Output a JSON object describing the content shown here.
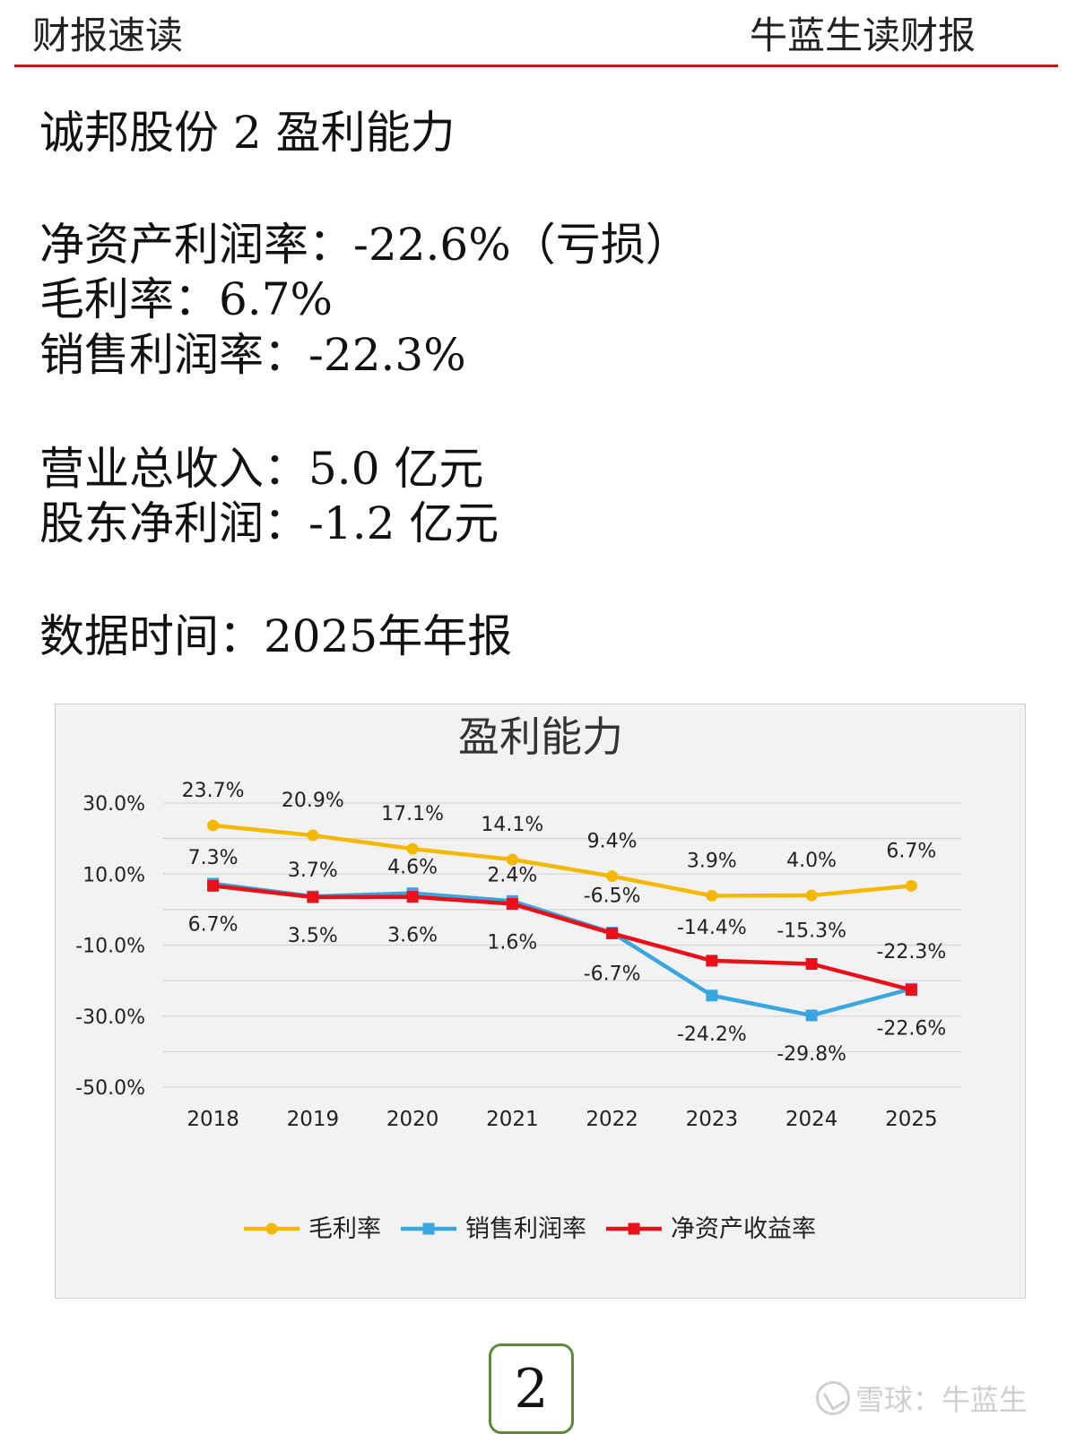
{
  "header": {
    "left": "财报速读",
    "right": "牛蓝生读财报"
  },
  "title_line": "诚邦股份 2 盈利能力",
  "metrics": [
    "净资产利润率：-22.6%（亏损）",
    "毛利率：6.7%",
    "销售利润率：-22.3%"
  ],
  "totals": [
    "营业总收入：5.0 亿元",
    "股东净利润：-1.2 亿元"
  ],
  "data_time": "数据时间：2025年年报",
  "page_number": "2",
  "watermark": "雪球：牛蓝生",
  "colors": {
    "accent_rule": "#c9151e",
    "gross": "#f5b800",
    "sales": "#3aa6e0",
    "roe": "#e8111a"
  },
  "chart_data": {
    "type": "line",
    "title": "盈利能力",
    "categories": [
      "2018",
      "2019",
      "2020",
      "2021",
      "2022",
      "2023",
      "2024",
      "2025"
    ],
    "series": [
      {
        "name": "毛利率",
        "color": "#f5b800",
        "marker": "circle",
        "values": [
          23.7,
          20.9,
          17.1,
          14.1,
          9.4,
          3.9,
          4.0,
          6.7
        ],
        "labels": [
          "23.7%",
          "20.9%",
          "17.1%",
          "14.1%",
          "9.4%",
          "3.9%",
          "4.0%",
          "6.7%"
        ]
      },
      {
        "name": "销售利润率",
        "color": "#3aa6e0",
        "marker": "square",
        "values": [
          7.3,
          3.7,
          4.6,
          2.4,
          -6.5,
          -24.2,
          -29.8,
          -22.3
        ],
        "labels": [
          "7.3%",
          "3.7%",
          "4.6%",
          "2.4%",
          "-6.5%",
          "-24.2%",
          "-29.8%",
          "-22.3%"
        ]
      },
      {
        "name": "净资产收益率",
        "color": "#e8111a",
        "marker": "square",
        "values": [
          6.7,
          3.5,
          3.6,
          1.6,
          -6.7,
          -14.4,
          -15.3,
          -22.6
        ],
        "labels": [
          "6.7%",
          "3.5%",
          "3.6%",
          "1.6%",
          "-6.7%",
          "-14.4%",
          "-15.3%",
          "-22.6%"
        ]
      }
    ],
    "y_ticks": [
      "30.0%",
      "10.0%",
      "-10.0%",
      "-30.0%",
      "-50.0%"
    ],
    "ylim": [
      -50,
      30
    ],
    "grid": true,
    "legend_position": "bottom"
  }
}
